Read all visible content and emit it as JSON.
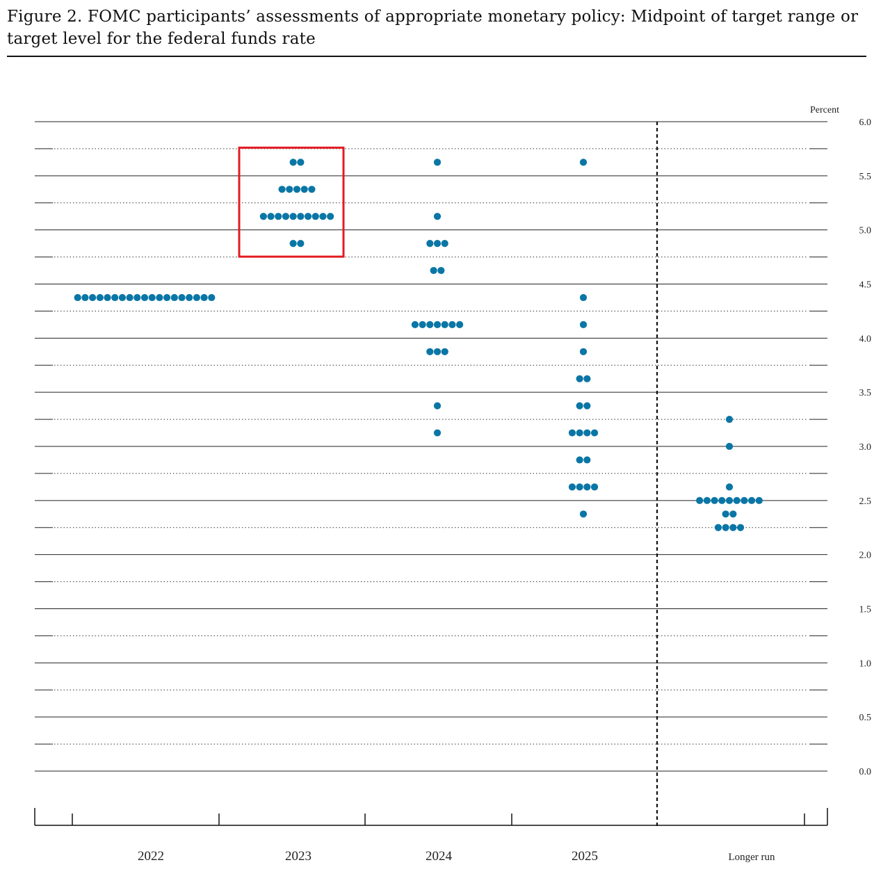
{
  "figure": {
    "title": "Figure 2.  FOMC participants’ assessments of appropriate monetary policy:  Midpoint of target range or target level for the federal funds rate"
  },
  "chart_data": {
    "type": "scatter",
    "subtype": "dot plot",
    "ylabel": "Percent",
    "ylim": [
      0,
      6
    ],
    "y_ticks": [
      "0.0",
      "0.5",
      "1.0",
      "1.5",
      "2.0",
      "2.5",
      "3.0",
      "3.5",
      "4.0",
      "4.5",
      "5.0",
      "5.5",
      "6.0"
    ],
    "grid": "dotted horizontal lines every 0.25, labels every 0.5",
    "categories": [
      "2022",
      "2023",
      "2024",
      "2025",
      "Longer run"
    ],
    "dot_color": "#0a76a6",
    "highlight": {
      "category": "2023",
      "y_range": [
        4.875,
        5.625
      ],
      "color": "#e31b23"
    },
    "series": [
      {
        "category": "2022",
        "dots": [
          {
            "y": 4.375,
            "count": 19
          }
        ]
      },
      {
        "category": "2023",
        "dots": [
          {
            "y": 5.625,
            "count": 2
          },
          {
            "y": 5.375,
            "count": 5
          },
          {
            "y": 5.125,
            "count": 10
          },
          {
            "y": 4.875,
            "count": 2
          }
        ]
      },
      {
        "category": "2024",
        "dots": [
          {
            "y": 5.625,
            "count": 1
          },
          {
            "y": 5.125,
            "count": 1
          },
          {
            "y": 4.875,
            "count": 3
          },
          {
            "y": 4.625,
            "count": 2
          },
          {
            "y": 4.125,
            "count": 7
          },
          {
            "y": 3.875,
            "count": 3
          },
          {
            "y": 3.375,
            "count": 1
          },
          {
            "y": 3.125,
            "count": 1
          }
        ]
      },
      {
        "category": "2025",
        "dots": [
          {
            "y": 5.625,
            "count": 1
          },
          {
            "y": 4.375,
            "count": 1
          },
          {
            "y": 4.125,
            "count": 1
          },
          {
            "y": 3.875,
            "count": 1
          },
          {
            "y": 3.625,
            "count": 2
          },
          {
            "y": 3.375,
            "count": 2
          },
          {
            "y": 3.125,
            "count": 4
          },
          {
            "y": 2.875,
            "count": 2
          },
          {
            "y": 2.625,
            "count": 4
          },
          {
            "y": 2.375,
            "count": 1
          }
        ]
      },
      {
        "category": "Longer run",
        "dots": [
          {
            "y": 3.25,
            "count": 1
          },
          {
            "y": 3.0,
            "count": 1
          },
          {
            "y": 2.625,
            "count": 1
          },
          {
            "y": 2.5,
            "count": 9
          },
          {
            "y": 2.375,
            "count": 2
          },
          {
            "y": 2.25,
            "count": 4
          }
        ]
      }
    ]
  }
}
